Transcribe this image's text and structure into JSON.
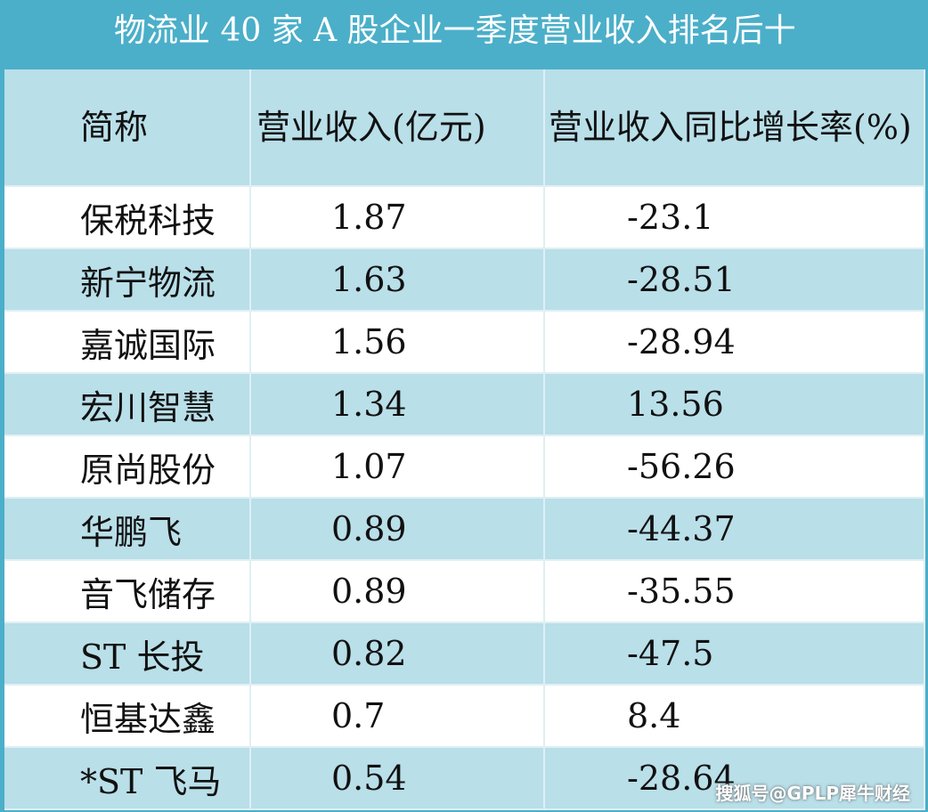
{
  "title": "物流业 40 家 A 股企业一季度营业收入排名后十",
  "table": {
    "header": [
      "简称",
      "营业收入(亿元)",
      "营业收入同比增长率(%)"
    ],
    "rows": [
      [
        "保税科技",
        1.87,
        -23.1
      ],
      [
        "新宁物流",
        1.63,
        -28.51
      ],
      [
        "嘉诚国际",
        1.56,
        -28.94
      ],
      [
        "宏川智慧",
        1.34,
        13.56
      ],
      [
        "原尚股份",
        1.07,
        -56.26
      ],
      [
        "华鹏飞",
        0.89,
        -44.37
      ],
      [
        "音飞储存",
        0.89,
        -35.55
      ],
      [
        "ST 长投",
        0.82,
        -47.5
      ],
      [
        "恒基达鑫",
        0.7,
        8.4
      ],
      [
        "*ST 飞马",
        0.54,
        -28.64
      ]
    ]
  },
  "watermark": "搜狐号@GPLP犀牛财经"
}
